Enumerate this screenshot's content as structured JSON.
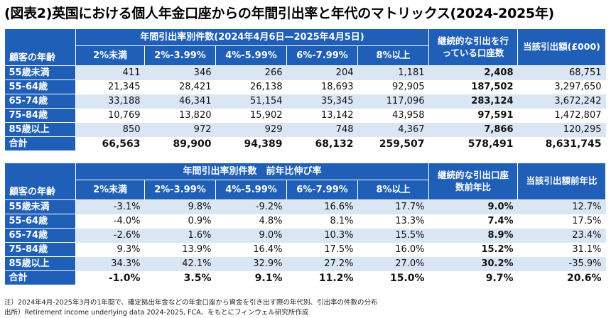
{
  "title": "(図表2)英国における個人年金口座からの年間引出率と年代のマトリックス(2024-2025年)",
  "table1": {
    "row_header": "顧客の年齢",
    "group_header": "年間引出率別件数(2024年4月6日—2025年4月5日)",
    "columns": [
      "2%未満",
      "2%-3.99%",
      "4%-5.99%",
      "6%-7.99%",
      "8%以上"
    ],
    "extra_col1": "継続的な引出を行っている口座数",
    "extra_col2": "当該引出額(£000)",
    "rows": [
      {
        "label": "55歳未満",
        "cells": [
          "411",
          "346",
          "266",
          "204",
          "1,181",
          "2,408",
          "68,751"
        ]
      },
      {
        "label": "55-64歳",
        "cells": [
          "21,345",
          "28,421",
          "26,138",
          "18,693",
          "92,905",
          "187,502",
          "3,297,650"
        ]
      },
      {
        "label": "65-74歳",
        "cells": [
          "33,188",
          "46,341",
          "51,154",
          "35,345",
          "117,096",
          "283,124",
          "3,672,242"
        ]
      },
      {
        "label": "75-84歳",
        "cells": [
          "10,769",
          "13,820",
          "15,902",
          "13,142",
          "43,958",
          "97,591",
          "1,472,807"
        ]
      },
      {
        "label": "85歳以上",
        "cells": [
          "850",
          "972",
          "929",
          "748",
          "4,367",
          "7,866",
          "120,295"
        ]
      },
      {
        "label": "合計",
        "cells": [
          "66,563",
          "89,900",
          "94,389",
          "68,132",
          "259,507",
          "578,491",
          "8,631,745"
        ]
      }
    ]
  },
  "table2": {
    "row_header": "顧客の年齢",
    "group_header": "年間引出率別件数　前年比伸び率",
    "columns": [
      "2%未満",
      "2%-3.99%",
      "4%-5.99%",
      "6%-7.99%",
      "8%以上"
    ],
    "extra_col1": "継続的な引出口座数前年比",
    "extra_col2": "当該引出額前年比",
    "rows": [
      {
        "label": "55歳未満",
        "cells": [
          "-3.1%",
          "9.8%",
          "-9.2%",
          "16.6%",
          "17.7%",
          "9.0%",
          "12.7%"
        ]
      },
      {
        "label": "55-64歳",
        "cells": [
          "-4.0%",
          "0.9%",
          "4.8%",
          "8.1%",
          "13.3%",
          "7.4%",
          "17.5%"
        ]
      },
      {
        "label": "65-74歳",
        "cells": [
          "-2.6%",
          "1.6%",
          "9.0%",
          "10.3%",
          "15.5%",
          "8.9%",
          "23.4%"
        ]
      },
      {
        "label": "75-84歳",
        "cells": [
          "9.3%",
          "13.9%",
          "16.4%",
          "17.5%",
          "16.0%",
          "15.2%",
          "31.1%"
        ]
      },
      {
        "label": "85歳以上",
        "cells": [
          "34.3%",
          "42.1%",
          "32.9%",
          "27.2%",
          "27.0%",
          "30.2%",
          "-35.9%"
        ]
      },
      {
        "label": "合計",
        "cells": [
          "-1.0%",
          "3.5%",
          "9.1%",
          "11.2%",
          "15.0%",
          "9.7%",
          "20.6%"
        ]
      }
    ]
  },
  "notes": {
    "line1": "注）2024年4月-2025年3月の1年間で、確定拠出年金などの年金口座から資金を引き出す際の年代別、引出率の件数の分布",
    "line2": "出所）Retirement income underlying data 2024-2025, FCA、をもとにフィンウェル研究所作成"
  },
  "colors": {
    "header_blue": "#1f5fb8",
    "stripe": "#dbe6f5"
  }
}
